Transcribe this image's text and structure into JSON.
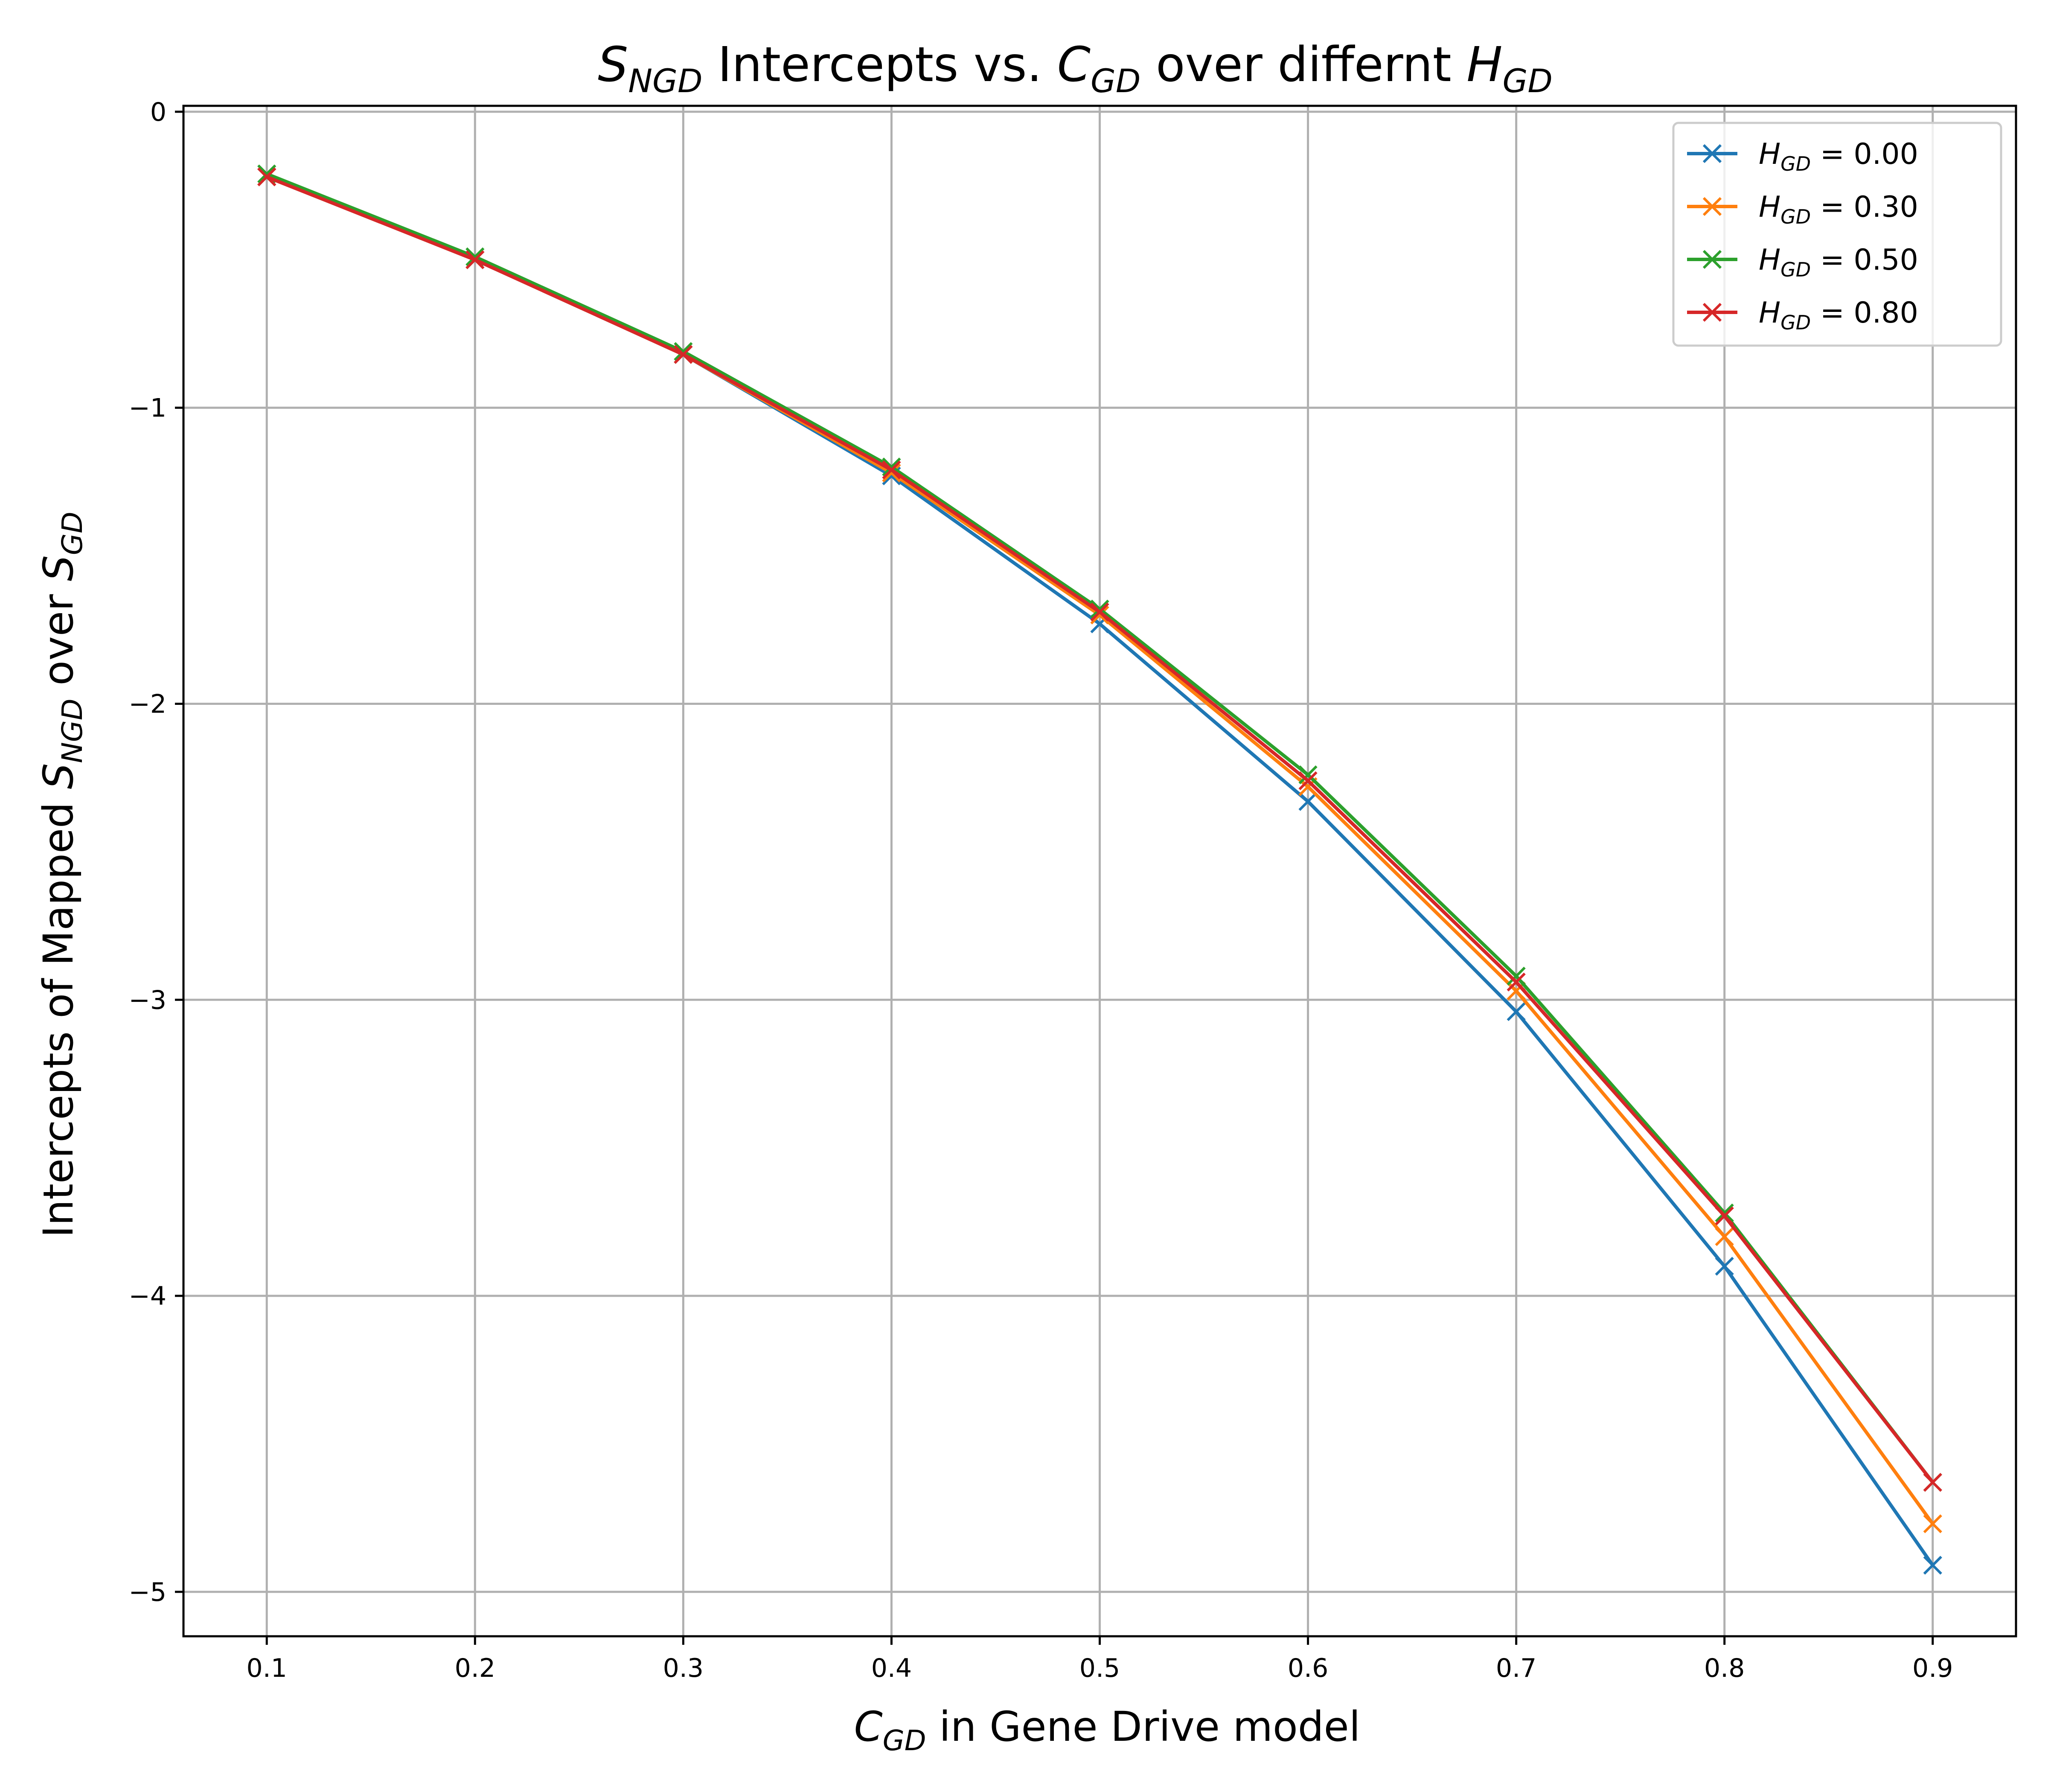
{
  "chart_data": {
    "type": "line",
    "title": {
      "pre": "S",
      "pre_sub": "NGD",
      "mid": " Intercepts vs. ",
      "c": "C",
      "c_sub": "GD",
      "post": " over differnt ",
      "h": "H",
      "h_sub": "GD"
    },
    "xlabel": {
      "var": "C",
      "sub": "GD",
      "rest": " in Gene Drive model"
    },
    "ylabel": {
      "pre": "Intercepts of Mapped ",
      "s1": "S",
      "s1_sub": "NGD",
      "mid": " over ",
      "s2": "S",
      "s2_sub": "GD"
    },
    "x": [
      0.1,
      0.2,
      0.3,
      0.4,
      0.5,
      0.6,
      0.7,
      0.8,
      0.9
    ],
    "xlim": [
      0.06,
      0.94
    ],
    "ylim": [
      -5.15,
      0.02
    ],
    "x_ticks": [
      0.1,
      0.2,
      0.3,
      0.4,
      0.5,
      0.6,
      0.7,
      0.8,
      0.9
    ],
    "x_tick_labels": [
      "0.1",
      "0.2",
      "0.3",
      "0.4",
      "0.5",
      "0.6",
      "0.7",
      "0.8",
      "0.9"
    ],
    "y_ticks": [
      0,
      -1,
      -2,
      -3,
      -4,
      -5
    ],
    "y_tick_labels": [
      "0",
      "−1",
      "−2",
      "−3",
      "−4",
      "−5"
    ],
    "grid": true,
    "legend_position": "upper right",
    "marker": "x",
    "series": [
      {
        "name": "H_GD = 0.00",
        "label_var": "H",
        "label_sub": "GD",
        "label_val": " = 0.00",
        "color": "#1f77b4",
        "values": [
          -0.22,
          -0.5,
          -0.82,
          -1.23,
          -1.73,
          -2.33,
          -3.04,
          -3.9,
          -4.91
        ]
      },
      {
        "name": "H_GD = 0.30",
        "label_var": "H",
        "label_sub": "GD",
        "label_val": " = 0.30",
        "color": "#ff7f0e",
        "values": [
          -0.22,
          -0.5,
          -0.82,
          -1.22,
          -1.7,
          -2.28,
          -2.97,
          -3.8,
          -4.77
        ]
      },
      {
        "name": "H_GD = 0.50",
        "label_var": "H",
        "label_sub": "GD",
        "label_val": " = 0.50",
        "color": "#2ca02c",
        "values": [
          -0.21,
          -0.49,
          -0.81,
          -1.2,
          -1.68,
          -2.24,
          -2.92,
          -3.72,
          -4.63
        ]
      },
      {
        "name": "H_GD = 0.80",
        "label_var": "H",
        "label_sub": "GD",
        "label_val": " = 0.80",
        "color": "#d62728",
        "values": [
          -0.22,
          -0.5,
          -0.82,
          -1.21,
          -1.69,
          -2.26,
          -2.94,
          -3.73,
          -4.63
        ]
      }
    ]
  }
}
